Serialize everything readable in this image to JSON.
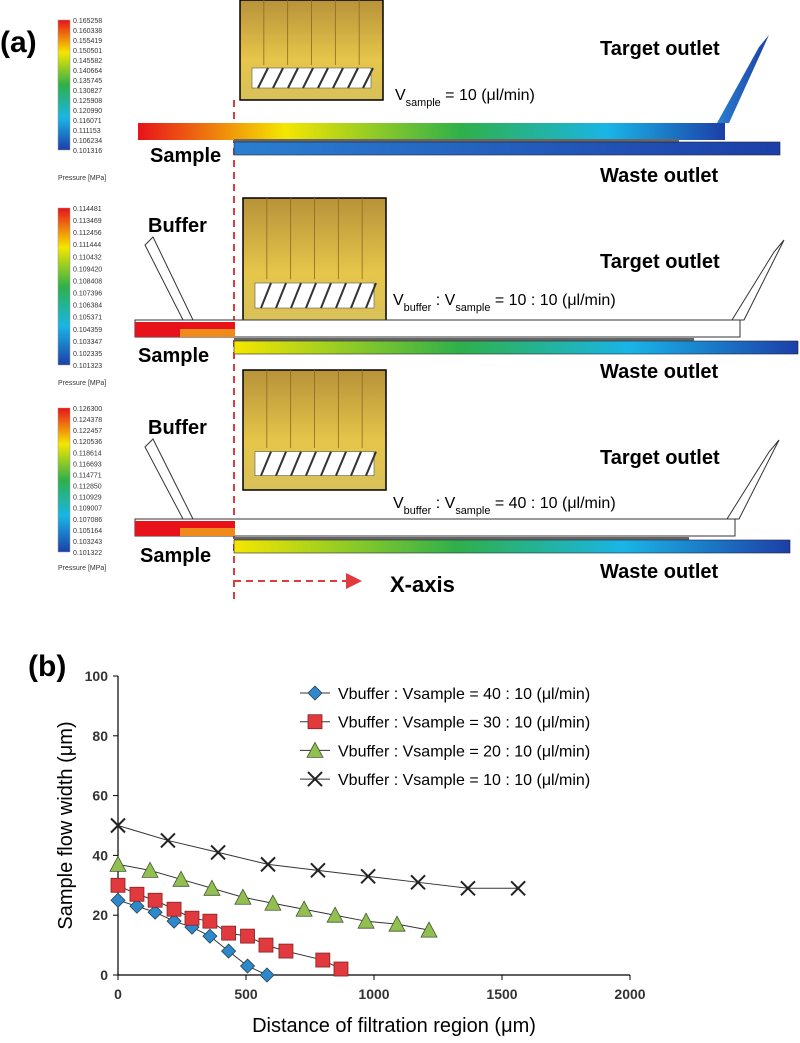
{
  "panel_a": {
    "label": "(a)",
    "x_axis_label": "X-axis",
    "cases": [
      {
        "colorbar": {
          "values": [
            "0.165258",
            "0.160338",
            "0.155419",
            "0.150501",
            "0.145582",
            "0.140664",
            "0.135745",
            "0.130827",
            "0.125908",
            "0.120990",
            "0.116071",
            "0.111153",
            "0.106234",
            "0.101316"
          ],
          "unit": "Pressure [MPa]"
        },
        "target": "Target outlet",
        "sample": "Sample",
        "waste": "Waste outlet",
        "flow_rate": [
          {
            "text": "V"
          },
          {
            "text": "sample",
            "sub": true
          },
          {
            "text": " = 10 (μl/min)"
          }
        ]
      },
      {
        "colorbar": {
          "values": [
            "0.114481",
            "0.113469",
            "0.112456",
            "0.111444",
            "0.110432",
            "0.109420",
            "0.108408",
            "0.107396",
            "0.106384",
            "0.105371",
            "0.104359",
            "0.103347",
            "0.102335",
            "0.101323"
          ],
          "unit": "Pressure [MPa]"
        },
        "buffer": "Buffer",
        "target": "Target outlet",
        "sample": "Sample",
        "waste": "Waste outlet",
        "flow_rate": [
          {
            "text": "V"
          },
          {
            "text": "buffer",
            "sub": true
          },
          {
            "text": " :  V"
          },
          {
            "text": "sample",
            "sub": true
          },
          {
            "text": " = 10 : 10 (μl/min)"
          }
        ]
      },
      {
        "colorbar": {
          "values": [
            "0.126300",
            "0.124378",
            "0.122457",
            "0.120536",
            "0.118614",
            "0.116693",
            "0.114771",
            "0.112850",
            "0.110929",
            "0.109007",
            "0.107086",
            "0.105164",
            "0.103243",
            "0.101322"
          ],
          "unit": "Pressure [MPa]"
        },
        "buffer": "Buffer",
        "target": "Target outlet",
        "sample": "Sample",
        "waste": "Waste outlet",
        "flow_rate": [
          {
            "text": "V"
          },
          {
            "text": "buffer",
            "sub": true
          },
          {
            "text": " :  V"
          },
          {
            "text": "sample",
            "sub": true
          },
          {
            "text": " = 40 : 10 (μl/min)"
          }
        ]
      }
    ]
  },
  "chart_data": {
    "type": "line",
    "panel_label": "(b)",
    "x_label": "Distance of filtration region (μm)",
    "y_label": "Sample flow width (μm)",
    "xlim": [
      0,
      2000
    ],
    "xticks": [
      0,
      500,
      1000,
      1500,
      2000
    ],
    "ylim": [
      0,
      100
    ],
    "yticks": [
      0,
      20,
      40,
      60,
      80,
      100
    ],
    "grid": false,
    "legend": "upper right",
    "series": [
      {
        "name": "Vbuffer : Vsample = 40 : 10 (μl/min)",
        "color": "#2f88c9",
        "marker": "diamond",
        "x": [
          0,
          74,
          145,
          219,
          289,
          359,
          432,
          506,
          582
        ],
        "values": [
          25,
          23,
          21,
          18,
          16,
          13,
          8,
          3,
          0
        ]
      },
      {
        "name": "Vbuffer : Vsample = 30 : 10 (μl/min)",
        "color": "#e0393e",
        "marker": "square",
        "x": [
          0,
          74,
          145,
          219,
          289,
          359,
          432,
          506,
          578,
          656,
          800,
          871
        ],
        "values": [
          30,
          27,
          25,
          22,
          19,
          18,
          14,
          13,
          10,
          8,
          5,
          2
        ]
      },
      {
        "name": "Vbuffer : Vsample = 20 : 10 (μl/min)",
        "color": "#92c050",
        "marker": "triangle",
        "x": [
          0,
          125,
          246,
          367,
          488,
          605,
          727,
          848,
          969,
          1090,
          1215
        ],
        "values": [
          37,
          35,
          32,
          29,
          26,
          24,
          22,
          20,
          18,
          17,
          15
        ]
      },
      {
        "name": "Vbuffer : Vsample = 10 : 10 (μl/min)",
        "color": "#222222",
        "marker": "x",
        "x": [
          0,
          195,
          391,
          586,
          781,
          977,
          1172,
          1367,
          1563
        ],
        "values": [
          50,
          45,
          41,
          37,
          35,
          33,
          31,
          29,
          29
        ]
      }
    ]
  }
}
